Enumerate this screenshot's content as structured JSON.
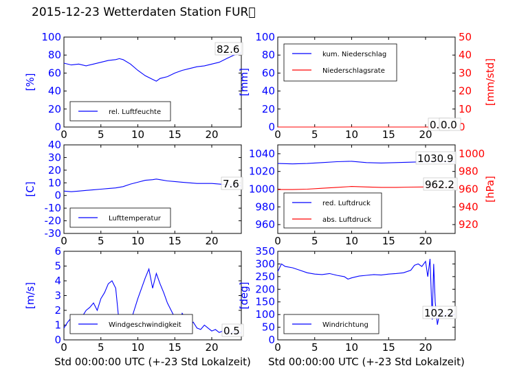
{
  "figure": {
    "title": "2015-12-23 Wetterdaten Station FUR\u0000",
    "xlabel": "Std 00:00:00 UTC (+-23 Std Lokalzeit)"
  },
  "colors": {
    "left": "#0000ff",
    "right": "#ff0000",
    "lightblue": "#9999ff"
  },
  "chart_data": [
    {
      "type": "line",
      "panel": "humidity",
      "ylabel": "[%]",
      "ylim": [
        0,
        100
      ],
      "yticks": [
        0,
        20,
        40,
        60,
        80,
        100
      ],
      "xlim": [
        0,
        24
      ],
      "xticks": [
        0,
        5,
        10,
        15,
        20
      ],
      "grid": false,
      "legend_placement": "lower-left",
      "annotations": [
        "82.6"
      ],
      "series": [
        {
          "name": "rel. Luftfeuchte",
          "color": "#0000ff",
          "x": [
            0,
            1,
            2,
            3,
            4,
            5,
            6,
            7,
            7.5,
            8,
            9,
            10,
            11,
            12,
            12.5,
            13,
            14,
            15,
            16,
            17,
            18,
            19,
            20,
            21,
            22,
            23,
            24
          ],
          "y": [
            71,
            69,
            70,
            68,
            70,
            72,
            74,
            75,
            76,
            75,
            70,
            63,
            57,
            53,
            51,
            54,
            56,
            60,
            63,
            65,
            67,
            68,
            70,
            72,
            76,
            80,
            82.6
          ]
        }
      ]
    },
    {
      "type": "line",
      "panel": "precip",
      "ylabel": "[mm]",
      "ylim": [
        0,
        100
      ],
      "yticks": [
        0,
        20,
        40,
        60,
        80,
        100
      ],
      "y2label": "[mm/std]",
      "y2lim": [
        0,
        50
      ],
      "y2ticks": [
        0,
        10,
        20,
        30,
        40,
        50
      ],
      "xlim": [
        0,
        24
      ],
      "xticks": [
        0,
        5,
        10,
        15,
        20
      ],
      "grid": false,
      "legend_placement": "upper-left",
      "annotations": [
        "0.0",
        "0.0"
      ],
      "series": [
        {
          "name": "kum. Niederschlag",
          "color": "#0000ff",
          "axis": "left",
          "x": [
            0,
            24
          ],
          "y": [
            0,
            0
          ]
        },
        {
          "name": "Niederschlagsrate",
          "color": "#ff0000",
          "axis": "right",
          "x": [
            0,
            24
          ],
          "y": [
            0,
            0
          ]
        }
      ]
    },
    {
      "type": "line",
      "panel": "temperature",
      "ylabel": "[C]",
      "ylim": [
        -30,
        40
      ],
      "yticks": [
        -30,
        -20,
        -10,
        0,
        10,
        20,
        30,
        40
      ],
      "xlim": [
        0,
        24
      ],
      "xticks": [
        0,
        5,
        10,
        15,
        20
      ],
      "grid": false,
      "legend_placement": "lower-left",
      "annotations": [
        "7.6"
      ],
      "series": [
        {
          "name": "Lufttemperatur",
          "color": "#0000ff",
          "x": [
            0,
            1,
            2,
            3,
            4,
            5,
            6,
            7,
            8,
            9,
            10,
            11,
            12,
            12.5,
            13,
            14,
            15,
            16,
            17,
            18,
            19,
            20,
            21,
            22,
            23,
            24
          ],
          "y": [
            3.5,
            3,
            3.5,
            4,
            4.5,
            5,
            5.5,
            6,
            7,
            9,
            10.5,
            12,
            12.5,
            13,
            12.5,
            11.5,
            11,
            10.5,
            10,
            9.5,
            9.5,
            9.5,
            9,
            8.5,
            8,
            7.6
          ]
        }
      ]
    },
    {
      "type": "line",
      "panel": "pressure",
      "ylim": [
        950,
        1050
      ],
      "yticks": [
        960,
        980,
        1000,
        1020,
        1040
      ],
      "y2label": "[hPa]",
      "y2lim": [
        910,
        1010
      ],
      "y2ticks": [
        920,
        940,
        960,
        980,
        1000
      ],
      "xlim": [
        0,
        24
      ],
      "xticks": [
        0,
        5,
        10,
        15,
        20
      ],
      "grid": false,
      "legend_placement": "lower-left",
      "annotations": [
        "1030.9",
        "962.2"
      ],
      "series": [
        {
          "name": "red. Luftdruck",
          "color": "#0000ff",
          "axis": "left",
          "x": [
            0,
            2,
            4,
            6,
            8,
            10,
            12,
            14,
            16,
            18,
            20,
            22,
            24
          ],
          "y": [
            1029,
            1028.5,
            1029,
            1030,
            1031,
            1031.5,
            1030,
            1029.5,
            1030,
            1030.5,
            1031,
            1031,
            1030.9
          ]
        },
        {
          "name": "abs. Luftdruck",
          "color": "#ff0000",
          "axis": "right",
          "x": [
            0,
            2,
            4,
            6,
            8,
            10,
            12,
            14,
            16,
            18,
            20,
            22,
            24
          ],
          "y": [
            959.5,
            959.5,
            960,
            961,
            962,
            963,
            962.5,
            962,
            962,
            962.3,
            962.5,
            962.4,
            962.2
          ]
        }
      ]
    },
    {
      "type": "line",
      "panel": "wind",
      "ylabel": "[m/s]",
      "ylim": [
        0,
        6
      ],
      "yticks": [
        0,
        1,
        2,
        3,
        4,
        5,
        6
      ],
      "xlim": [
        0,
        24
      ],
      "xticks": [
        0,
        5,
        10,
        15,
        20
      ],
      "grid": false,
      "legend_placement": "lower-left",
      "annotations": [
        "0.5"
      ],
      "series": [
        {
          "name": "Windgeschwindigkeit",
          "color": "#0000ff",
          "x": [
            0,
            0.5,
            1,
            1.5,
            2,
            2.5,
            3,
            3.5,
            4,
            4.5,
            5,
            5.5,
            6,
            6.5,
            7,
            7.5,
            8,
            8.5,
            9,
            9.5,
            10,
            10.5,
            11,
            11.5,
            12,
            12.5,
            13,
            13.5,
            14,
            14.5,
            15,
            15.5,
            16,
            16.5,
            17,
            17.5,
            18,
            18.5,
            19,
            19.5,
            20,
            20.5,
            21,
            21.5,
            22,
            22.5,
            23,
            23.5,
            24
          ],
          "y": [
            0.8,
            1.2,
            1.5,
            0.9,
            1.3,
            1.6,
            2.0,
            2.2,
            2.5,
            2.0,
            2.8,
            3.2,
            3.8,
            4.0,
            3.5,
            1.0,
            0.6,
            0.8,
            1.2,
            2.0,
            2.8,
            3.5,
            4.2,
            4.8,
            3.5,
            4.5,
            3.8,
            3.2,
            2.5,
            2.0,
            1.5,
            1.0,
            1.8,
            1.4,
            1.0,
            1.2,
            0.8,
            0.7,
            1.0,
            0.8,
            0.6,
            0.7,
            0.5,
            0.6,
            0.5,
            0.4,
            0.6,
            0.4,
            0.5
          ]
        }
      ]
    },
    {
      "type": "line",
      "panel": "winddir",
      "ylabel": "[deg]",
      "ylim": [
        0,
        350
      ],
      "yticks": [
        0,
        50,
        100,
        150,
        200,
        250,
        300,
        350
      ],
      "xlim": [
        0,
        24
      ],
      "xticks": [
        0,
        5,
        10,
        15,
        20
      ],
      "grid": false,
      "legend_placement": "lower-left",
      "annotations": [
        "102.2"
      ],
      "series": [
        {
          "name": "Windrichtung",
          "color": "#0000ff",
          "x": [
            0,
            0.5,
            1,
            2,
            3,
            4,
            5,
            6,
            7,
            8,
            9,
            9.5,
            10,
            11,
            12,
            13,
            14,
            15,
            16,
            17,
            18,
            18.5,
            19,
            19.5,
            20,
            20.3,
            20.6,
            20.9,
            21.1,
            21.3,
            21.6,
            22,
            22.5,
            23,
            23.5,
            24
          ],
          "y": [
            270,
            300,
            290,
            285,
            275,
            265,
            260,
            258,
            262,
            255,
            250,
            240,
            245,
            252,
            255,
            258,
            256,
            260,
            262,
            265,
            275,
            295,
            300,
            290,
            310,
            250,
            320,
            80,
            300,
            150,
            60,
            120,
            90,
            105,
            95,
            102.2
          ]
        }
      ]
    }
  ]
}
